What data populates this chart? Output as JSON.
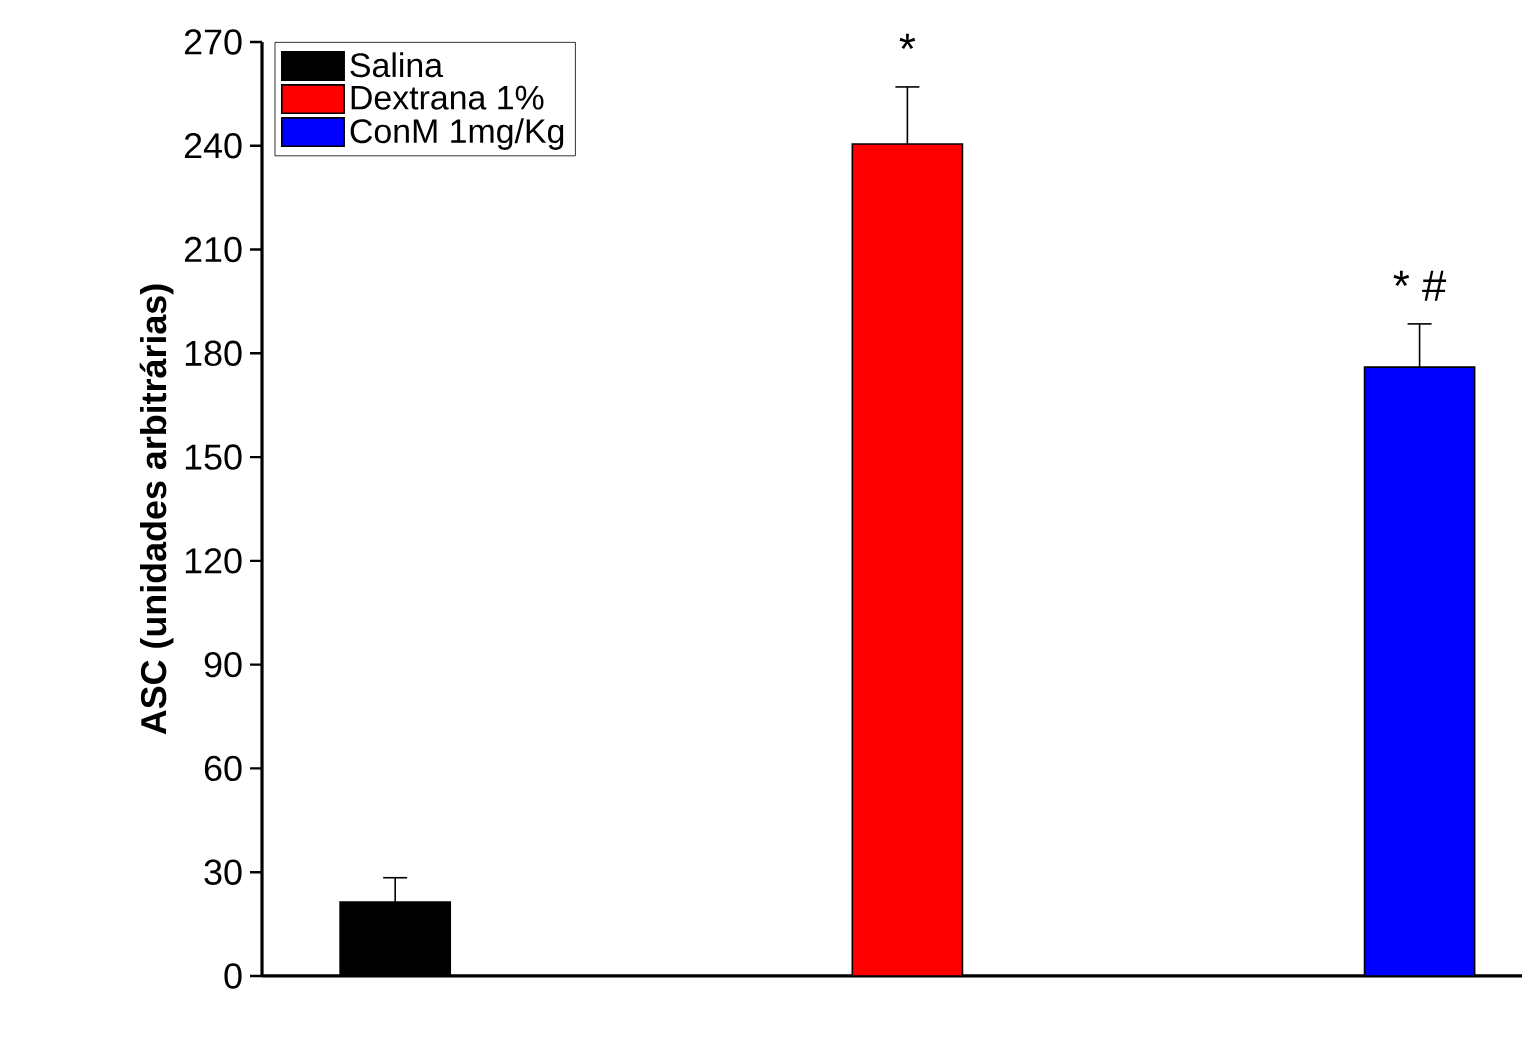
{
  "chart_data": {
    "type": "bar",
    "ylabel": "ASC (unidades arbitrárias)",
    "categories": [
      null,
      null,
      null
    ],
    "series": [
      {
        "name": "Salina",
        "color": "#000000",
        "values": [
          21.4,
          null,
          null
        ],
        "errors": [
          7,
          null,
          null
        ]
      },
      {
        "name": "Dextrana 1%",
        "color": "#ff0000",
        "values": [
          null,
          240.5,
          null
        ],
        "errors": [
          null,
          16.5,
          null
        ],
        "value_labels": [
          null,
          "*",
          null
        ]
      },
      {
        "name": "ConM 1mg/Kg",
        "color": "#0000ff",
        "values": [
          null,
          null,
          176
        ],
        "errors": [
          null,
          null,
          12.5
        ],
        "value_labels": [
          null,
          null,
          "* #"
        ]
      }
    ],
    "ylim": [
      0,
      270
    ],
    "yticks": [
      0,
      30,
      60,
      90,
      120,
      150,
      180,
      210,
      240,
      270
    ],
    "legend": "top left",
    "tick_labels": "y",
    "grid": false
  }
}
